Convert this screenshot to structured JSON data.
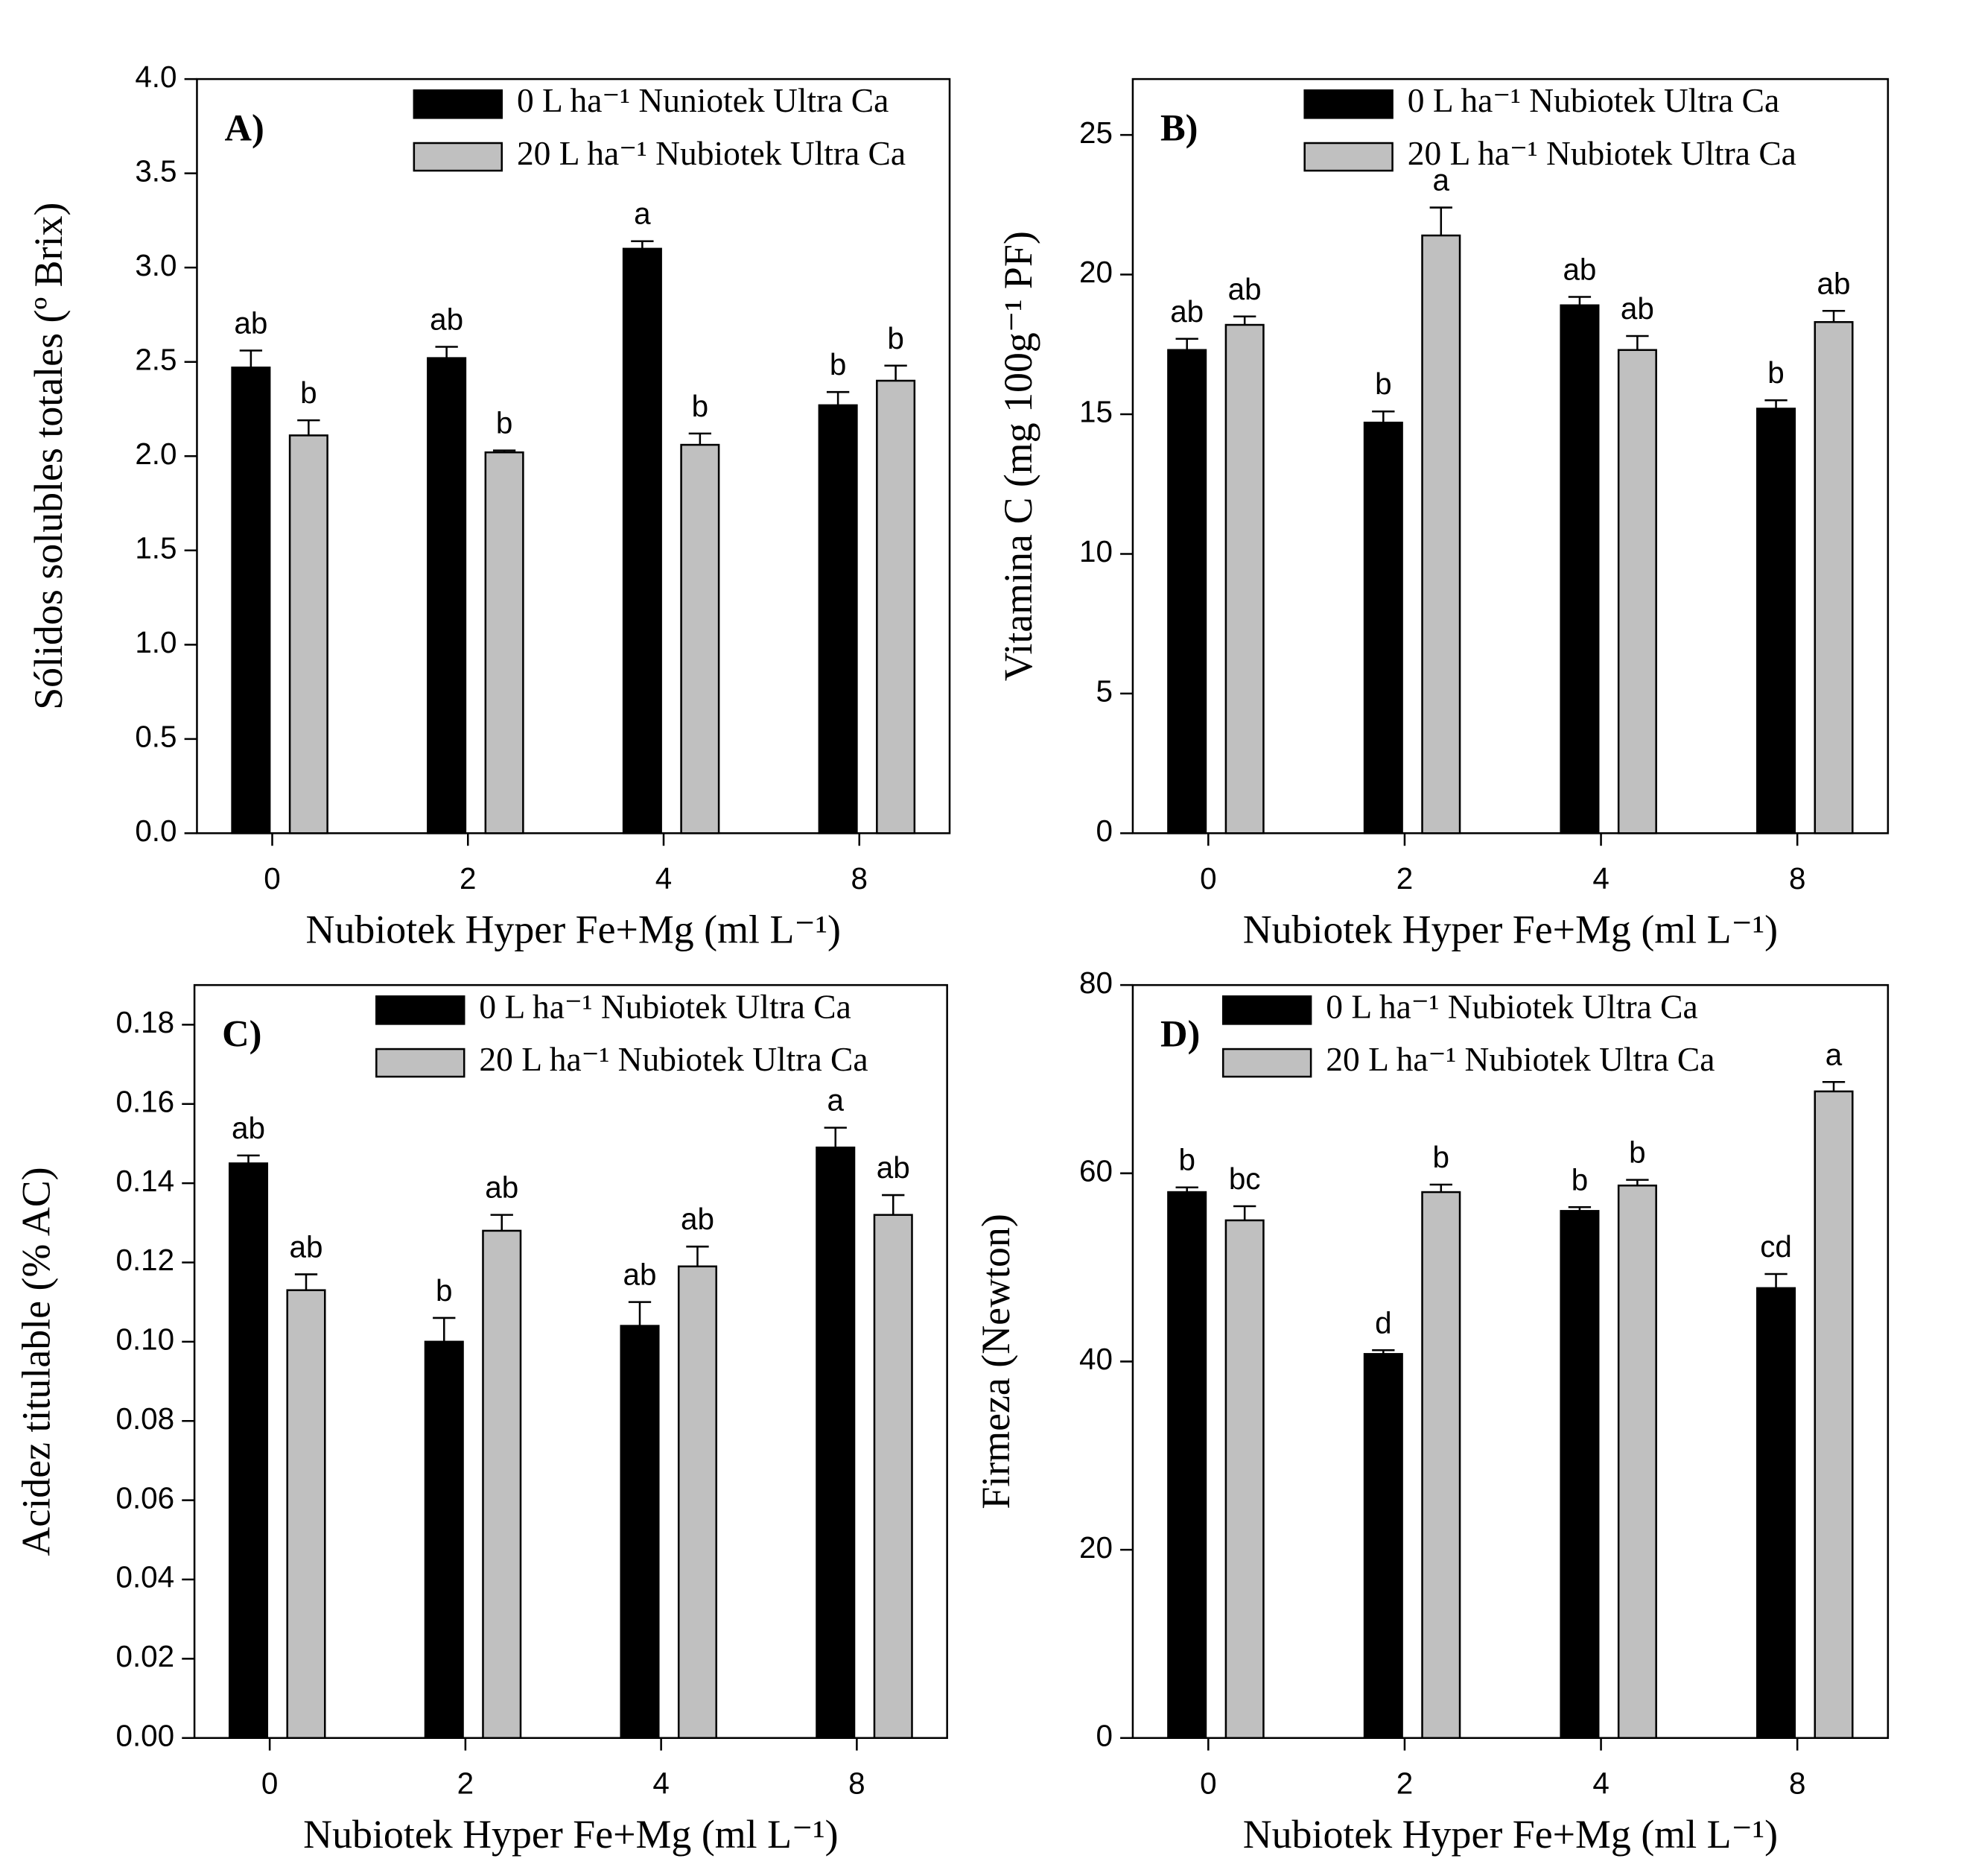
{
  "chart_data": [
    {
      "type": "bar",
      "panel": "A)",
      "ylabel": "Sólidos solubles totales (º Brix)",
      "xlabel": "Nubiotek Hyper Fe+Mg (ml L⁻¹)",
      "categories": [
        "0",
        "2",
        "4",
        "8"
      ],
      "series": [
        {
          "name": "0 L ha⁻¹ Nuniotek Ultra Ca",
          "color": "#000000",
          "values": [
            2.47,
            2.52,
            3.1,
            2.27
          ],
          "errors": [
            0.09,
            0.06,
            0.04,
            0.07
          ],
          "letters": [
            "ab",
            "ab",
            "a",
            "b"
          ]
        },
        {
          "name": "20 L ha⁻¹ Nubiotek Ultra Ca",
          "color": "#c0c0c0",
          "values": [
            2.11,
            2.02,
            2.06,
            2.4
          ],
          "errors": [
            0.08,
            0.01,
            0.06,
            0.08
          ],
          "letters": [
            "b",
            "b",
            "b",
            "b"
          ]
        }
      ],
      "ylim": [
        0,
        4
      ],
      "yticks": [
        {
          "value": 0,
          "label": "0.0"
        },
        0.5,
        {
          "value": 1,
          "label": "1.0"
        },
        1.5,
        {
          "value": 2,
          "label": "2.0"
        },
        2.5,
        {
          "value": 3,
          "label": "3.0"
        },
        3.5,
        {
          "value": 4,
          "label": "4.0"
        }
      ],
      "legend": "upper right"
    },
    {
      "type": "bar",
      "panel": "B)",
      "ylabel": "Vitamina C (mg 100g⁻¹ PF)",
      "xlabel": "Nubiotek Hyper Fe+Mg (ml L⁻¹)",
      "categories": [
        "0",
        "2",
        "4",
        "8"
      ],
      "series": [
        {
          "name": "0 L ha⁻¹ Nubiotek Ultra Ca",
          "color": "#000000",
          "values": [
            17.3,
            14.7,
            18.9,
            15.2
          ],
          "errors": [
            0.4,
            0.4,
            0.3,
            0.3
          ],
          "letters": [
            "ab",
            "b",
            "ab",
            "b"
          ]
        },
        {
          "name": "20 L ha⁻¹ Nubiotek Ultra Ca",
          "color": "#c0c0c0",
          "values": [
            18.2,
            21.4,
            17.3,
            18.3
          ],
          "errors": [
            0.3,
            1.0,
            0.5,
            0.4
          ],
          "letters": [
            "ab",
            "a",
            "ab",
            "ab"
          ]
        }
      ],
      "ylim": [
        0,
        27
      ],
      "yticks": [
        0,
        5,
        10,
        15,
        20,
        25
      ],
      "legend": "upper right"
    },
    {
      "type": "bar",
      "panel": "C)",
      "ylabel": "Acidez titulable (% AC)",
      "xlabel": "Nubiotek Hyper Fe+Mg (ml L⁻¹)",
      "categories": [
        "0",
        "2",
        "4",
        "8"
      ],
      "series": [
        {
          "name": "0 L ha⁻¹ Nubiotek Ultra Ca",
          "color": "#000000",
          "values": [
            0.145,
            0.1,
            0.104,
            0.149
          ],
          "errors": [
            0.002,
            0.006,
            0.006,
            0.005
          ],
          "letters": [
            "ab",
            "b",
            "ab",
            "a"
          ]
        },
        {
          "name": "20 L ha⁻¹ Nubiotek Ultra Ca",
          "color": "#c0c0c0",
          "values": [
            0.113,
            0.128,
            0.119,
            0.132
          ],
          "errors": [
            0.004,
            0.004,
            0.005,
            0.005
          ],
          "letters": [
            "ab",
            "ab",
            "ab",
            "ab"
          ]
        }
      ],
      "ylim": [
        0,
        0.19
      ],
      "yticks": [
        {
          "value": 0,
          "label": "0.00"
        },
        0.02,
        0.04,
        0.06,
        0.08,
        {
          "value": 0.1,
          "label": "0.10"
        },
        0.12,
        0.14,
        0.16,
        0.18
      ],
      "legend": "upper right"
    },
    {
      "type": "bar",
      "panel": "D)",
      "ylabel": "Firmeza (Newton)",
      "xlabel": "Nubiotek Hyper Fe+Mg (ml L⁻¹)",
      "categories": [
        "0",
        "2",
        "4",
        "8"
      ],
      "series": [
        {
          "name": "0 L ha⁻¹ Nubiotek Ultra Ca",
          "color": "#000000",
          "values": [
            58,
            40.8,
            56,
            47.8
          ],
          "errors": [
            0.5,
            0.4,
            0.4,
            1.5
          ],
          "letters": [
            "b",
            "d",
            "b",
            "cd"
          ]
        },
        {
          "name": "20 L ha⁻¹ Nubiotek Ultra Ca",
          "color": "#c0c0c0",
          "values": [
            55,
            58,
            58.7,
            68.7
          ],
          "errors": [
            1.5,
            0.8,
            0.6,
            1.0
          ],
          "letters": [
            "bc",
            "b",
            "b",
            "a"
          ]
        }
      ],
      "ylim": [
        0,
        80
      ],
      "yticks": [
        0,
        20,
        40,
        60,
        80
      ],
      "legend": "upper right"
    }
  ]
}
